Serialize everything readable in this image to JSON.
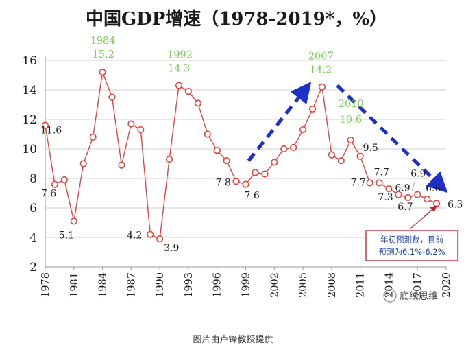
{
  "caption": "图片由卢锋教授提供",
  "watermark": "底线思维",
  "note_lines": [
    "年初预测数，目前",
    "预测为6.1%-6.2%"
  ],
  "colors": {
    "series": "#e8413c",
    "trend_arrow": "#1c2fc9",
    "highlight_label": "#77d05a",
    "note_border": "#c2182b",
    "note_text": "#1f3fa8",
    "grid": "#d0d0d0"
  },
  "chart_data": {
    "type": "line",
    "title": "中国GDP增速（1978-2019*，%）",
    "xlabel": "",
    "ylabel": "",
    "ylim": [
      2,
      16
    ],
    "yticks": [
      "2",
      "4",
      "6",
      "8",
      "10",
      "12",
      "14",
      "16"
    ],
    "xlim": [
      1978,
      2020
    ],
    "xticks": [
      "1978",
      "1981",
      "1984",
      "1987",
      "1990",
      "1993",
      "1996",
      "1999",
      "2002",
      "2005",
      "2008",
      "2011",
      "2014",
      "2017",
      "2020"
    ],
    "grid": true,
    "legend": "none",
    "x": [
      1978,
      1979,
      1980,
      1981,
      1982,
      1983,
      1984,
      1985,
      1986,
      1987,
      1988,
      1989,
      1990,
      1991,
      1992,
      1993,
      1994,
      1995,
      1996,
      1997,
      1998,
      1999,
      2000,
      2001,
      2002,
      2003,
      2004,
      2005,
      2006,
      2007,
      2008,
      2009,
      2010,
      2011,
      2012,
      2013,
      2014,
      2015,
      2016,
      2017,
      2018,
      2019
    ],
    "values": [
      11.6,
      7.6,
      7.9,
      5.1,
      9.0,
      10.8,
      15.2,
      13.5,
      8.9,
      11.7,
      11.3,
      4.2,
      3.9,
      9.3,
      14.3,
      13.9,
      13.1,
      11.0,
      9.9,
      9.2,
      7.8,
      7.6,
      8.4,
      8.3,
      9.1,
      10.0,
      10.1,
      11.3,
      12.7,
      14.2,
      9.6,
      9.2,
      10.6,
      9.5,
      7.7,
      7.7,
      7.3,
      6.9,
      6.7,
      6.9,
      6.6,
      6.3
    ],
    "point_labels": [
      {
        "x": 1978,
        "y": 11.6,
        "text": "11.6",
        "highlight": false
      },
      {
        "x": 1979,
        "y": 7.6,
        "text": "7.6",
        "highlight": false
      },
      {
        "x": 1981,
        "y": 5.1,
        "text": "5.1",
        "highlight": false
      },
      {
        "x": 1984,
        "y": 15.2,
        "text": "15.2",
        "highlight": true
      },
      {
        "x": 1989,
        "y": 4.2,
        "text": "4.2",
        "highlight": false
      },
      {
        "x": 1990,
        "y": 3.9,
        "text": "3.9",
        "highlight": false
      },
      {
        "x": 1992,
        "y": 14.3,
        "text": "14.3",
        "highlight": true
      },
      {
        "x": 1998,
        "y": 7.8,
        "text": "7.8",
        "highlight": false
      },
      {
        "x": 1999,
        "y": 7.6,
        "text": "7.6",
        "highlight": false
      },
      {
        "x": 2007,
        "y": 14.2,
        "text": "14.2",
        "highlight": true
      },
      {
        "x": 2010,
        "y": 10.6,
        "text": "10.6",
        "highlight": true
      },
      {
        "x": 2011,
        "y": 9.5,
        "text": "9.5",
        "highlight": false
      },
      {
        "x": 2012,
        "y": 7.7,
        "text": "7.7",
        "highlight": false
      },
      {
        "x": 2013,
        "y": 7.7,
        "text": "7.7",
        "highlight": false
      },
      {
        "x": 2014,
        "y": 7.3,
        "text": "7.3",
        "highlight": false
      },
      {
        "x": 2015,
        "y": 6.9,
        "text": "6.9",
        "highlight": false
      },
      {
        "x": 2016,
        "y": 6.7,
        "text": "6.7",
        "highlight": false
      },
      {
        "x": 2017,
        "y": 6.9,
        "text": "6.9",
        "highlight": false
      },
      {
        "x": 2018,
        "y": 6.6,
        "text": "6.6",
        "highlight": false
      },
      {
        "x": 2019,
        "y": 6.3,
        "text": "6.3",
        "highlight": false
      }
    ],
    "year_labels": [
      {
        "x": 1984,
        "text": "1984"
      },
      {
        "x": 1992,
        "text": "1992"
      },
      {
        "x": 2007,
        "text": "2007"
      },
      {
        "x": 2010,
        "text": "2010"
      }
    ]
  }
}
